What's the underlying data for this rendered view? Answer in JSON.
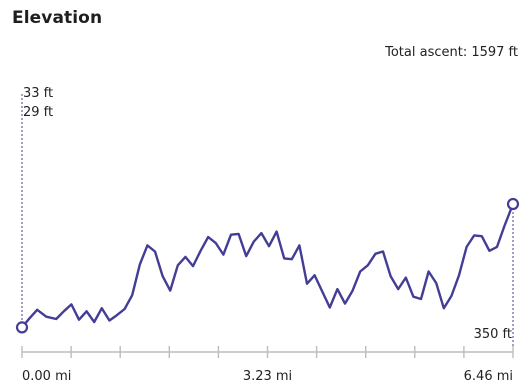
{
  "header": {
    "title": "Elevation",
    "total_ascent": "Total ascent: 1597 ft"
  },
  "colors": {
    "line": "#433d95",
    "axis": "#bdbdbd",
    "text": "#222222"
  },
  "chart_data": {
    "type": "line",
    "title": "Elevation",
    "x_unit": "mi",
    "y_unit": "ft",
    "xlim": [
      0,
      6.46
    ],
    "ylim": [
      29,
      350
    ],
    "x_tick_labels": [
      "0.00 mi",
      "3.23 mi",
      "6.46 mi"
    ],
    "x_tick_values": [
      0,
      3.23,
      6.46
    ],
    "marker_labels": {
      "start_top_1": "33 ft",
      "start_top_2": "29 ft",
      "end_bottom": "350 ft"
    },
    "series": [
      {
        "x": [
          0.0,
          0.1,
          0.2,
          0.32,
          0.45,
          0.55,
          0.65,
          0.75,
          0.85,
          0.95,
          1.05,
          1.15,
          1.25,
          1.35,
          1.45,
          1.55,
          1.65,
          1.75,
          1.85,
          1.95,
          2.05,
          2.15,
          2.25,
          2.35,
          2.45,
          2.55,
          2.65,
          2.75,
          2.85,
          2.95,
          3.05,
          3.15,
          3.25,
          3.35,
          3.45,
          3.55,
          3.65,
          3.75,
          3.85,
          3.95,
          4.05,
          4.15,
          4.25,
          4.35,
          4.45,
          4.55,
          4.65,
          4.75,
          4.85,
          4.95,
          5.05,
          5.15,
          5.25,
          5.35,
          5.45,
          5.55,
          5.65,
          5.75,
          5.85,
          5.95,
          6.05,
          6.15,
          6.25,
          6.35,
          6.46
        ],
        "y": [
          35,
          47,
          58,
          49,
          46,
          56,
          65,
          45,
          56,
          42,
          60,
          44,
          51,
          59,
          77,
          117,
          142,
          134,
          102,
          83,
          116,
          127,
          115,
          135,
          153,
          145,
          130,
          156,
          157,
          128,
          147,
          158,
          141,
          160,
          125,
          124,
          142,
          92,
          103,
          82,
          61,
          85,
          66,
          83,
          108,
          116,
          131,
          134,
          102,
          85,
          100,
          75,
          72,
          108,
          93,
          60,
          76,
          103,
          140,
          155,
          154,
          135,
          140,
          168,
          196
        ]
      }
    ]
  }
}
